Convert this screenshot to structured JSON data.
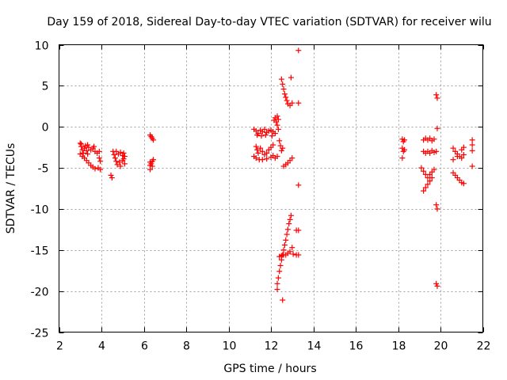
{
  "chart_data": {
    "type": "scatter",
    "title": "Day 159 of 2018, Sidereal Day-to-day VTEC variation (SDTVAR) for receiver wilu",
    "xlabel": "GPS time / hours",
    "ylabel": "SDTVAR / TECUs",
    "xlim": [
      2,
      22
    ],
    "ylim": [
      -25,
      10
    ],
    "xticks": [
      2,
      4,
      6,
      8,
      10,
      12,
      14,
      16,
      18,
      20,
      22
    ],
    "yticks": [
      -25,
      -20,
      -15,
      -10,
      -5,
      0,
      5,
      10
    ],
    "grid": true,
    "marker": "plus",
    "color": "#ff0000",
    "series": [
      {
        "name": "SDTVAR",
        "points": [
          [
            3.0,
            -2.0
          ],
          [
            3.05,
            -2.4
          ],
          [
            3.1,
            -2.8
          ],
          [
            3.15,
            -3.2
          ],
          [
            3.2,
            -2.6
          ],
          [
            3.25,
            -2.3
          ],
          [
            3.3,
            -2.9
          ],
          [
            3.35,
            -3.3
          ],
          [
            3.4,
            -2.5
          ],
          [
            3.5,
            -2.8
          ],
          [
            3.6,
            -2.6
          ],
          [
            3.7,
            -3.0
          ],
          [
            3.8,
            -3.2
          ],
          [
            3.9,
            -3.0
          ],
          [
            3.0,
            -3.3
          ],
          [
            3.1,
            -3.6
          ],
          [
            3.2,
            -3.8
          ],
          [
            3.3,
            -4.1
          ],
          [
            3.4,
            -4.4
          ],
          [
            3.5,
            -4.7
          ],
          [
            3.6,
            -4.9
          ],
          [
            3.7,
            -5.1
          ],
          [
            3.85,
            -5.0
          ],
          [
            3.9,
            -3.8
          ],
          [
            3.95,
            -4.2
          ],
          [
            3.95,
            -5.2
          ],
          [
            3.05,
            -2.1
          ],
          [
            3.35,
            -2.2
          ],
          [
            3.65,
            -2.4
          ],
          [
            4.45,
            -5.9
          ],
          [
            4.5,
            -6.2
          ],
          [
            4.55,
            -3.0
          ],
          [
            4.6,
            -3.4
          ],
          [
            4.65,
            -3.8
          ],
          [
            4.7,
            -4.2
          ],
          [
            4.75,
            -4.6
          ],
          [
            4.8,
            -3.3
          ],
          [
            4.9,
            -3.1
          ],
          [
            5.0,
            -3.5
          ],
          [
            5.05,
            -3.2
          ],
          [
            5.1,
            -3.6
          ],
          [
            5.0,
            -4.1
          ],
          [
            5.1,
            -4.5
          ],
          [
            4.9,
            -4.8
          ],
          [
            4.85,
            -4.3
          ],
          [
            5.05,
            -3.9
          ],
          [
            4.7,
            -3.0
          ],
          [
            6.3,
            -1.0
          ],
          [
            6.35,
            -1.2
          ],
          [
            6.4,
            -1.4
          ],
          [
            6.45,
            -1.6
          ],
          [
            6.3,
            -4.3
          ],
          [
            6.3,
            -4.7
          ],
          [
            6.3,
            -5.2
          ],
          [
            6.35,
            -4.5
          ],
          [
            6.4,
            -4.2
          ],
          [
            6.4,
            -4.8
          ],
          [
            6.45,
            -4.0
          ],
          [
            11.2,
            -0.3
          ],
          [
            11.3,
            -0.5
          ],
          [
            11.4,
            -0.8
          ],
          [
            11.5,
            -0.4
          ],
          [
            11.6,
            -0.6
          ],
          [
            11.7,
            -0.3
          ],
          [
            11.8,
            -0.7
          ],
          [
            11.9,
            -0.5
          ],
          [
            12.0,
            -0.4
          ],
          [
            12.1,
            -0.6
          ],
          [
            12.2,
            -0.8
          ],
          [
            11.35,
            -1.0
          ],
          [
            11.55,
            -1.1
          ],
          [
            11.75,
            -1.0
          ],
          [
            12.05,
            -1.1
          ],
          [
            11.3,
            -2.4
          ],
          [
            11.35,
            -2.8
          ],
          [
            11.4,
            -3.2
          ],
          [
            11.5,
            -2.6
          ],
          [
            11.6,
            -3.0
          ],
          [
            11.7,
            -3.4
          ],
          [
            11.8,
            -3.2
          ],
          [
            11.9,
            -2.8
          ],
          [
            12.0,
            -2.5
          ],
          [
            12.1,
            -2.2
          ],
          [
            11.2,
            -3.6
          ],
          [
            11.3,
            -3.8
          ],
          [
            11.45,
            -4.0
          ],
          [
            11.6,
            -4.0
          ],
          [
            11.8,
            -3.9
          ],
          [
            12.0,
            -3.7
          ],
          [
            12.1,
            -3.5
          ],
          [
            12.2,
            -3.8
          ],
          [
            12.3,
            -3.6
          ],
          [
            12.15,
            0.8
          ],
          [
            12.2,
            1.1
          ],
          [
            12.25,
            0.6
          ],
          [
            12.3,
            1.3
          ],
          [
            12.3,
            0.2
          ],
          [
            12.35,
            0.9
          ],
          [
            12.35,
            -0.3
          ],
          [
            12.4,
            -1.7
          ],
          [
            12.45,
            -2.3
          ],
          [
            12.5,
            -2.9
          ],
          [
            12.55,
            -2.6
          ],
          [
            12.5,
            5.8
          ],
          [
            12.55,
            5.2
          ],
          [
            12.6,
            4.6
          ],
          [
            12.65,
            4.0
          ],
          [
            12.7,
            3.6
          ],
          [
            12.75,
            3.2
          ],
          [
            12.8,
            2.8
          ],
          [
            12.9,
            2.6
          ],
          [
            13.0,
            2.9
          ],
          [
            12.95,
            6.0
          ],
          [
            13.3,
            2.9
          ],
          [
            12.6,
            -4.8
          ],
          [
            12.7,
            -4.6
          ],
          [
            12.8,
            -4.4
          ],
          [
            12.9,
            -4.1
          ],
          [
            13.0,
            -3.8
          ],
          [
            13.3,
            9.3
          ],
          [
            13.3,
            -7.1
          ],
          [
            12.3,
            -19.8
          ],
          [
            12.3,
            -19.1
          ],
          [
            12.35,
            -18.4
          ],
          [
            12.4,
            -17.6
          ],
          [
            12.45,
            -16.9
          ],
          [
            12.5,
            -16.2
          ],
          [
            12.55,
            -15.6
          ],
          [
            12.6,
            -15.0
          ],
          [
            12.65,
            -14.4
          ],
          [
            12.7,
            -13.8
          ],
          [
            12.75,
            -13.1
          ],
          [
            12.8,
            -12.5
          ],
          [
            12.85,
            -11.8
          ],
          [
            12.9,
            -11.3
          ],
          [
            12.95,
            -10.8
          ],
          [
            13.2,
            -12.6
          ],
          [
            13.3,
            -12.6
          ],
          [
            12.4,
            -15.8
          ],
          [
            12.5,
            -15.7
          ],
          [
            12.6,
            -15.6
          ],
          [
            12.7,
            -15.6
          ],
          [
            12.8,
            -15.4
          ],
          [
            12.9,
            -15.2
          ],
          [
            13.0,
            -14.7
          ],
          [
            13.05,
            -15.5
          ],
          [
            13.2,
            -15.6
          ],
          [
            13.3,
            -15.6
          ],
          [
            12.55,
            -21.1
          ],
          [
            18.2,
            -1.5
          ],
          [
            18.25,
            -1.8
          ],
          [
            18.3,
            -1.6
          ],
          [
            18.2,
            -2.6
          ],
          [
            18.25,
            -3.0
          ],
          [
            18.3,
            -2.8
          ],
          [
            18.2,
            -3.8
          ],
          [
            19.2,
            -1.6
          ],
          [
            19.3,
            -1.4
          ],
          [
            19.4,
            -1.6
          ],
          [
            19.5,
            -1.4
          ],
          [
            19.6,
            -1.7
          ],
          [
            19.7,
            -1.5
          ],
          [
            19.2,
            -3.0
          ],
          [
            19.3,
            -3.2
          ],
          [
            19.4,
            -3.0
          ],
          [
            19.5,
            -3.2
          ],
          [
            19.6,
            -2.9
          ],
          [
            19.7,
            -3.1
          ],
          [
            19.8,
            -3.0
          ],
          [
            19.1,
            -5.0
          ],
          [
            19.2,
            -5.4
          ],
          [
            19.3,
            -5.8
          ],
          [
            19.4,
            -6.2
          ],
          [
            19.5,
            -5.8
          ],
          [
            19.6,
            -5.5
          ],
          [
            19.7,
            -5.2
          ],
          [
            19.2,
            -7.8
          ],
          [
            19.3,
            -7.4
          ],
          [
            19.4,
            -7.0
          ],
          [
            19.5,
            -6.6
          ],
          [
            19.6,
            -6.2
          ],
          [
            19.8,
            3.9
          ],
          [
            19.85,
            3.5
          ],
          [
            19.85,
            -0.2
          ],
          [
            19.8,
            -9.5
          ],
          [
            19.85,
            -10.0
          ],
          [
            19.8,
            -19.1
          ],
          [
            19.85,
            -19.4
          ],
          [
            20.6,
            -2.6
          ],
          [
            20.7,
            -3.0
          ],
          [
            20.8,
            -3.3
          ],
          [
            20.9,
            -3.6
          ],
          [
            21.0,
            -2.8
          ],
          [
            21.1,
            -2.5
          ],
          [
            20.6,
            -4.0
          ],
          [
            20.8,
            -3.6
          ],
          [
            21.0,
            -3.8
          ],
          [
            21.1,
            -3.4
          ],
          [
            20.6,
            -5.6
          ],
          [
            20.7,
            -5.9
          ],
          [
            20.8,
            -6.2
          ],
          [
            20.9,
            -6.5
          ],
          [
            21.0,
            -6.8
          ],
          [
            21.1,
            -6.9
          ],
          [
            21.5,
            -1.6
          ],
          [
            21.5,
            -2.2
          ],
          [
            21.5,
            -2.9
          ],
          [
            21.5,
            -4.8
          ]
        ]
      }
    ]
  }
}
